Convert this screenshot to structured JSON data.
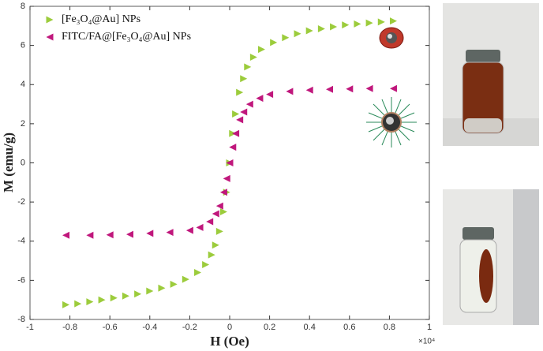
{
  "chart_data": {
    "type": "scatter",
    "x_label": "H (Oe)",
    "y_label": "M (emu/g)",
    "x_scale_label": "×10⁴",
    "xlim": [
      -1,
      1
    ],
    "xticks": [
      -1,
      -0.8,
      -0.6,
      -0.4,
      -0.2,
      0,
      0.2,
      0.4,
      0.6,
      0.8,
      1
    ],
    "ylim": [
      -8,
      8
    ],
    "yticks": [
      -8,
      -6,
      -4,
      -2,
      0,
      2,
      4,
      6,
      8
    ],
    "grid": false,
    "legend": "upper left",
    "series": [
      {
        "name": "[Fe₃O₄@Au] NPs",
        "color": "#9ccc3c",
        "marker": "triangle-right",
        "x": [
          -0.82,
          -0.76,
          -0.7,
          -0.64,
          -0.58,
          -0.52,
          -0.46,
          -0.4,
          -0.34,
          -0.28,
          -0.22,
          -0.16,
          -0.12,
          -0.09,
          -0.07,
          -0.05,
          -0.03,
          -0.015,
          0,
          0.015,
          0.03,
          0.05,
          0.07,
          0.09,
          0.12,
          0.16,
          0.22,
          0.28,
          0.34,
          0.4,
          0.46,
          0.52,
          0.58,
          0.64,
          0.7,
          0.76,
          0.82
        ],
        "values": [
          -7.25,
          -7.2,
          -7.1,
          -7.0,
          -6.9,
          -6.8,
          -6.7,
          -6.55,
          -6.4,
          -6.2,
          -5.95,
          -5.6,
          -5.2,
          -4.7,
          -4.2,
          -3.5,
          -2.5,
          -1.5,
          0,
          1.5,
          2.5,
          3.6,
          4.3,
          4.9,
          5.4,
          5.8,
          6.15,
          6.4,
          6.6,
          6.75,
          6.85,
          6.95,
          7.05,
          7.1,
          7.15,
          7.2,
          7.25
        ]
      },
      {
        "name": "FITC/FA@[Fe₃O₄@Au] NPs",
        "color": "#c0177c",
        "marker": "triangle-left",
        "x": [
          -0.82,
          -0.7,
          -0.6,
          -0.5,
          -0.4,
          -0.3,
          -0.2,
          -0.15,
          -0.1,
          -0.07,
          -0.05,
          -0.03,
          -0.015,
          0,
          0.015,
          0.03,
          0.05,
          0.07,
          0.1,
          0.15,
          0.2,
          0.3,
          0.4,
          0.5,
          0.6,
          0.7,
          0.82
        ],
        "values": [
          -3.7,
          -3.7,
          -3.68,
          -3.65,
          -3.6,
          -3.55,
          -3.45,
          -3.3,
          -3.0,
          -2.6,
          -2.2,
          -1.5,
          -0.8,
          0,
          0.8,
          1.5,
          2.2,
          2.6,
          3.0,
          3.3,
          3.5,
          3.65,
          3.72,
          3.76,
          3.78,
          3.8,
          3.8
        ]
      }
    ]
  }
}
